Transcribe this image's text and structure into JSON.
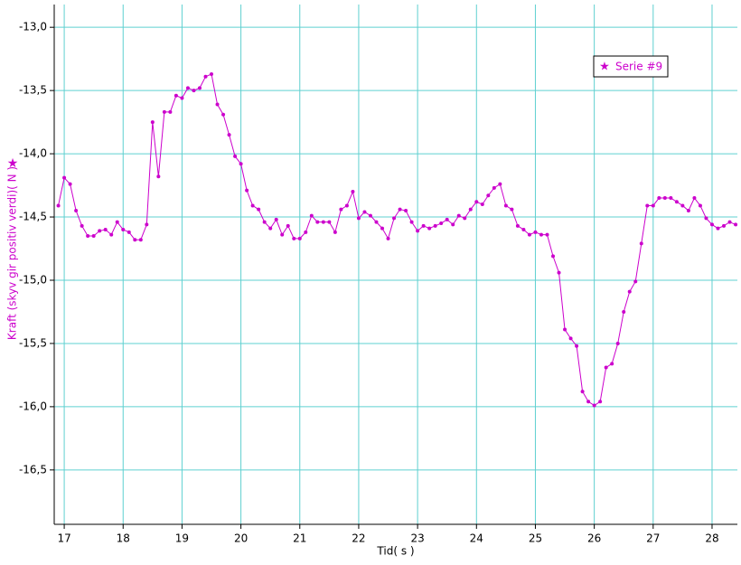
{
  "chart_data": {
    "type": "line",
    "x_label": "Tid( s )",
    "y_label": "Kraft (skyv gir positiv verdi)( N )",
    "x": [
      16.9,
      17.0,
      17.1,
      17.2,
      17.3,
      17.4,
      17.5,
      17.6,
      17.7,
      17.8,
      17.9,
      18.0,
      18.1,
      18.2,
      18.3,
      18.4,
      18.5,
      18.6,
      18.7,
      18.8,
      18.9,
      19.0,
      19.1,
      19.2,
      19.3,
      19.4,
      19.5,
      19.6,
      19.7,
      19.8,
      19.9,
      20.0,
      20.1,
      20.2,
      20.3,
      20.4,
      20.5,
      20.6,
      20.7,
      20.8,
      20.9,
      21.0,
      21.1,
      21.2,
      21.3,
      21.4,
      21.5,
      21.6,
      21.7,
      21.8,
      21.9,
      22.0,
      22.1,
      22.2,
      22.3,
      22.4,
      22.5,
      22.6,
      22.7,
      22.8,
      22.9,
      23.0,
      23.1,
      23.2,
      23.3,
      23.4,
      23.5,
      23.6,
      23.7,
      23.8,
      23.9,
      24.0,
      24.1,
      24.2,
      24.3,
      24.4,
      24.5,
      24.6,
      24.7,
      24.8,
      24.9,
      25.0,
      25.1,
      25.2,
      25.3,
      25.4,
      25.5,
      25.6,
      25.7,
      25.8,
      25.9,
      26.0,
      26.1,
      26.2,
      26.3,
      26.4,
      26.5,
      26.6,
      26.7,
      26.8,
      26.9,
      27.0,
      27.1,
      27.2,
      27.3,
      27.4,
      27.5,
      27.6,
      27.7,
      27.8,
      27.9,
      28.0,
      28.1,
      28.2,
      28.3,
      28.4
    ],
    "series": [
      {
        "name": "Serie #9",
        "color": "#cc00cc",
        "values": [
          -14.41,
          -14.19,
          -14.24,
          -14.45,
          -14.57,
          -14.65,
          -14.65,
          -14.61,
          -14.6,
          -14.64,
          -14.54,
          -14.6,
          -14.62,
          -14.68,
          -14.68,
          -14.56,
          -13.75,
          -14.18,
          -13.67,
          -13.67,
          -13.54,
          -13.56,
          -13.48,
          -13.5,
          -13.48,
          -13.39,
          -13.37,
          -13.61,
          -13.69,
          -13.85,
          -14.02,
          -14.08,
          -14.29,
          -14.41,
          -14.44,
          -14.54,
          -14.59,
          -14.52,
          -14.64,
          -14.57,
          -14.67,
          -14.67,
          -14.62,
          -14.49,
          -14.54,
          -14.54,
          -14.54,
          -14.62,
          -14.44,
          -14.41,
          -14.3,
          -14.51,
          -14.46,
          -14.49,
          -14.54,
          -14.59,
          -14.67,
          -14.51,
          -14.44,
          -14.45,
          -14.54,
          -14.61,
          -14.57,
          -14.59,
          -14.57,
          -14.55,
          -14.52,
          -14.56,
          -14.49,
          -14.51,
          -14.44,
          -14.38,
          -14.4,
          -14.33,
          -14.27,
          -14.24,
          -14.41,
          -14.44,
          -14.57,
          -14.6,
          -14.64,
          -14.62,
          -14.64,
          -14.64,
          -14.81,
          -14.94,
          -15.39,
          -15.46,
          -15.52,
          -15.88,
          -15.96,
          -15.99,
          -15.96,
          -15.69,
          -15.66,
          -15.5,
          -15.25,
          -15.09,
          -15.01,
          -14.71,
          -14.41,
          -14.41,
          -14.35,
          -14.35,
          -14.35,
          -14.38,
          -14.41,
          -14.45,
          -14.35,
          -14.41,
          -14.51,
          -14.56,
          -14.59,
          -14.57,
          -14.54,
          -14.56
        ]
      }
    ],
    "xlim": [
      16.83,
      28.43
    ],
    "ylim": [
      -16.93,
      -12.82
    ],
    "xticks": [
      17,
      18,
      19,
      20,
      21,
      22,
      23,
      24,
      25,
      26,
      27,
      28
    ],
    "yticks": [
      {
        "value": -13.0,
        "label": "-13,0"
      },
      {
        "value": -13.5,
        "label": "-13,5"
      },
      {
        "value": -14.0,
        "label": "-14,0"
      },
      {
        "value": -14.5,
        "label": "-14,5"
      },
      {
        "value": -15.0,
        "label": "-15,0"
      },
      {
        "value": -15.5,
        "label": "-15,5"
      },
      {
        "value": -16.0,
        "label": "-16,0"
      },
      {
        "value": -16.5,
        "label": "-16,5"
      }
    ],
    "grid": true,
    "legend": "upper right"
  }
}
